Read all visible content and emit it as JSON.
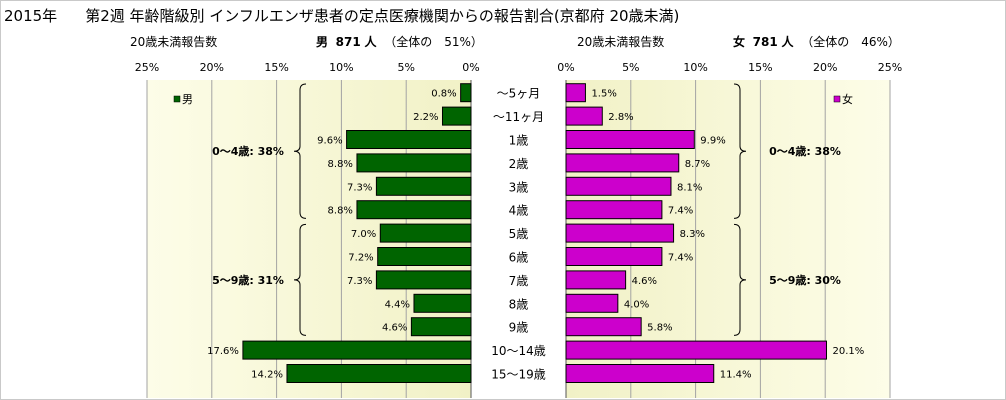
{
  "header": {
    "year": "2015年",
    "title": "第2週 年齢階級別 インフルエンザ患者の定点医療機関からの報告割合(京都府 20歳未満)"
  },
  "left_panel": {
    "caption": "20歳未満報告数",
    "summary_sex": "男",
    "summary_count": "871",
    "summary_unit": "人",
    "summary_share": "（全体の　51%）"
  },
  "right_panel": {
    "caption": "20歳未満報告数",
    "summary_sex": "女",
    "summary_count": "781",
    "summary_unit": "人",
    "summary_share": "（全体の　46%）"
  },
  "chart_data": [
    {
      "type": "bar",
      "orientation": "horizontal",
      "direction": "right-to-left",
      "categories": [
        "～5ヶ月",
        "～11ヶ月",
        "1歳",
        "2歳",
        "3歳",
        "4歳",
        "5歳",
        "6歳",
        "7歳",
        "8歳",
        "9歳",
        "10～14歳",
        "15～19歳"
      ],
      "series": [
        {
          "name": "男",
          "values": [
            0.8,
            2.2,
            9.6,
            8.8,
            7.3,
            8.8,
            7.0,
            7.2,
            7.3,
            4.4,
            4.6,
            17.6,
            14.2
          ],
          "color": "#006400"
        }
      ],
      "value_labels": [
        "0.8%",
        "2.2%",
        "9.6%",
        "8.8%",
        "7.3%",
        "8.8%",
        "7.0%",
        "7.2%",
        "7.3%",
        "4.4%",
        "4.6%",
        "17.6%",
        "14.2%"
      ],
      "xlim": [
        0,
        25
      ],
      "ticks": [
        "25%",
        "20%",
        "15%",
        "10%",
        "5%",
        "0%"
      ],
      "legend_position": "top-left",
      "grid": true,
      "annotations": [
        "0～4歳: 38%",
        "5～9歳: 31%"
      ]
    },
    {
      "type": "bar",
      "orientation": "horizontal",
      "direction": "left-to-right",
      "categories": [
        "～5ヶ月",
        "～11ヶ月",
        "1歳",
        "2歳",
        "3歳",
        "4歳",
        "5歳",
        "6歳",
        "7歳",
        "8歳",
        "9歳",
        "10～14歳",
        "15～19歳"
      ],
      "series": [
        {
          "name": "女",
          "values": [
            1.5,
            2.8,
            9.9,
            8.7,
            8.1,
            7.4,
            8.3,
            7.4,
            4.6,
            4.0,
            5.8,
            20.1,
            11.4
          ],
          "color": "#cc00cc"
        }
      ],
      "value_labels": [
        "1.5%",
        "2.8%",
        "9.9%",
        "8.7%",
        "8.1%",
        "7.4%",
        "8.3%",
        "7.4%",
        "4.6%",
        "4.0%",
        "5.8%",
        "20.1%",
        "11.4%"
      ],
      "xlim": [
        0,
        25
      ],
      "ticks": [
        "0%",
        "5%",
        "10%",
        "15%",
        "20%",
        "25%"
      ],
      "legend_position": "top-right",
      "grid": true,
      "annotations": [
        "0～4歳: 38%",
        "5～9歳: 30%"
      ]
    }
  ]
}
